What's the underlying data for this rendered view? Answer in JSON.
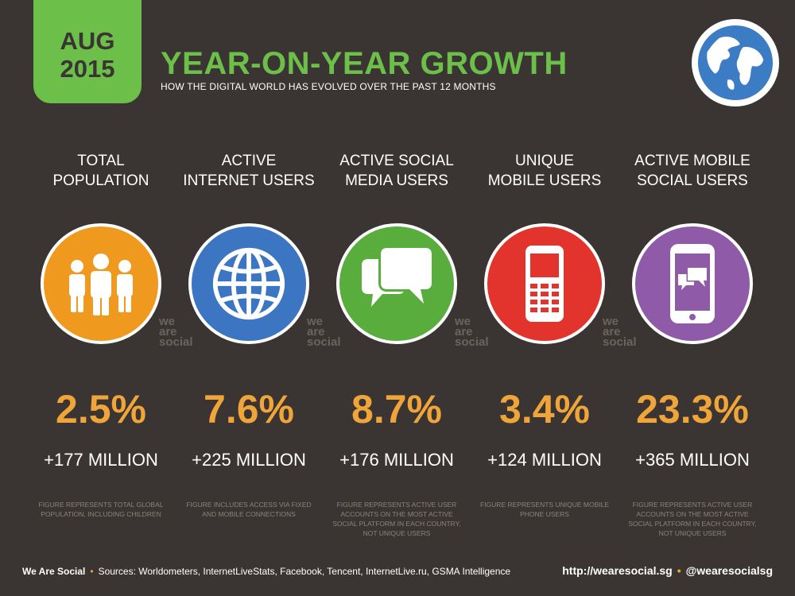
{
  "header": {
    "month": "AUG",
    "year": "2015",
    "title": "YEAR-ON-YEAR GROWTH",
    "subtitle": "HOW THE DIGITAL WORLD HAS EVOLVED OVER THE PAST 12 MONTHS",
    "accent_color": "#6cc04a",
    "globe_icon": "globe-icon"
  },
  "watermark": {
    "line1": "we",
    "line2": "are",
    "line3": "social"
  },
  "columns": [
    {
      "title_line1": "TOTAL",
      "title_line2": "POPULATION",
      "icon": "people-icon",
      "color": "#ef9a1f",
      "percent": "2.5%",
      "absolute": "+177 MILLION",
      "note": "FIGURE REPRESENTS TOTAL GLOBAL POPULATION, INCLUDING CHILDREN"
    },
    {
      "title_line1": "ACTIVE",
      "title_line2": "INTERNET USERS",
      "icon": "globe-icon",
      "color": "#3c75c2",
      "percent": "7.6%",
      "absolute": "+225 MILLION",
      "note": "FIGURE INCLUDES ACCESS VIA FIXED AND MOBILE CONNECTIONS"
    },
    {
      "title_line1": "ACTIVE SOCIAL",
      "title_line2": "MEDIA USERS",
      "icon": "chat-bubbles-icon",
      "color": "#58ad3c",
      "percent": "8.7%",
      "absolute": "+176 MILLION",
      "note": "FIGURE REPRESENTS ACTIVE USER ACCOUNTS ON THE MOST ACTIVE SOCIAL PLATFORM IN EACH COUNTRY, NOT UNIQUE USERS"
    },
    {
      "title_line1": "UNIQUE",
      "title_line2": "MOBILE USERS",
      "icon": "mobile-phone-icon",
      "color": "#e2342c",
      "percent": "3.4%",
      "absolute": "+124 MILLION",
      "note": "FIGURE REPRESENTS UNIQUE MOBILE PHONE USERS"
    },
    {
      "title_line1": "ACTIVE MOBILE",
      "title_line2": "SOCIAL USERS",
      "icon": "smartphone-chat-icon",
      "color": "#8f5aa8",
      "percent": "23.3%",
      "absolute": "+365 MILLION",
      "note": "FIGURE REPRESENTS ACTIVE USER ACCOUNTS ON THE MOST ACTIVE SOCIAL PLATFORM IN EACH COUNTRY, NOT UNIQUE USERS"
    }
  ],
  "footer": {
    "brand": "We Are Social",
    "sources": "Sources: Worldometers, InternetLiveStats, Facebook, Tencent, InternetLive.ru, GSMA Intelligence",
    "url": "http://wearesocial.sg",
    "handle": "@wearesocialsg"
  }
}
